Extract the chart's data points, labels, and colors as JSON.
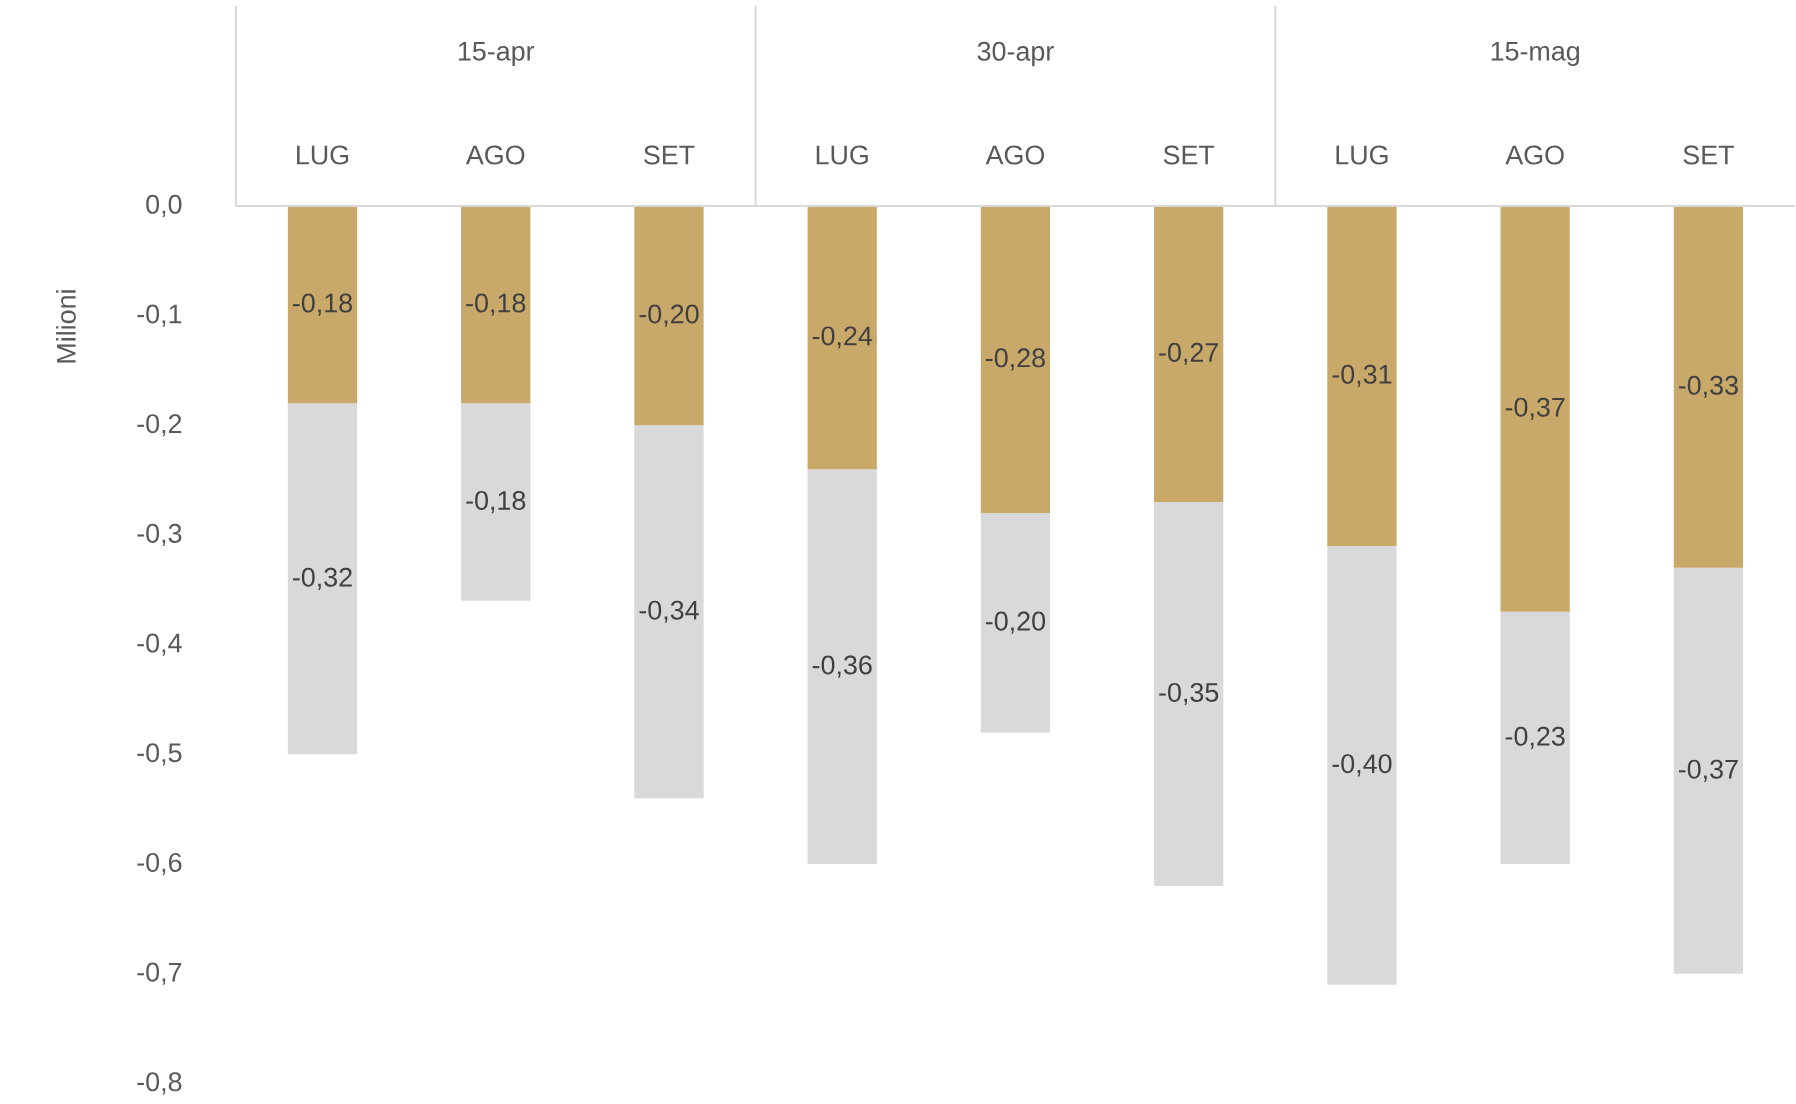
{
  "chart_data": {
    "type": "bar",
    "stacked": true,
    "ylabel": "Milioni",
    "categories": [
      "LUG",
      "AGO",
      "SET",
      "LUG",
      "AGO",
      "SET",
      "LUG",
      "AGO",
      "SET"
    ],
    "annotations": [
      "15-apr",
      "30-apr",
      "15-mag"
    ],
    "series": [
      {
        "color": "#c9a96a",
        "values": [
          -0.18,
          -0.18,
          -0.2,
          -0.24,
          -0.28,
          -0.27,
          -0.31,
          -0.37,
          -0.33
        ],
        "value_labels": [
          "-0,18",
          "-0,18",
          "-0,20",
          "-0,24",
          "-0,28",
          "-0,27",
          "-0,31",
          "-0,37",
          "-0,33"
        ]
      },
      {
        "color": "#d9d9d9",
        "values": [
          -0.32,
          -0.18,
          -0.34,
          -0.36,
          -0.2,
          -0.35,
          -0.4,
          -0.23,
          -0.37
        ],
        "value_labels": [
          "-0,32",
          "-0,18",
          "-0,34",
          "-0,36",
          "-0,20",
          "-0,35",
          "-0,40",
          "-0,23",
          "-0,37"
        ]
      }
    ],
    "ylim": [
      -0.8,
      0
    ],
    "yticks": [
      {
        "value": 0,
        "label": "0,0"
      },
      {
        "value": -0.1,
        "label": "-0,1"
      },
      {
        "value": -0.2,
        "label": "-0,2"
      },
      {
        "value": -0.3,
        "label": "-0,3"
      },
      {
        "value": -0.4,
        "label": "-0,4"
      },
      {
        "value": -0.5,
        "label": "-0,5"
      },
      {
        "value": -0.6,
        "label": "-0,6"
      },
      {
        "value": -0.7,
        "label": "-0,7"
      },
      {
        "value": -0.8,
        "label": "-0,8"
      }
    ],
    "grid": false
  }
}
